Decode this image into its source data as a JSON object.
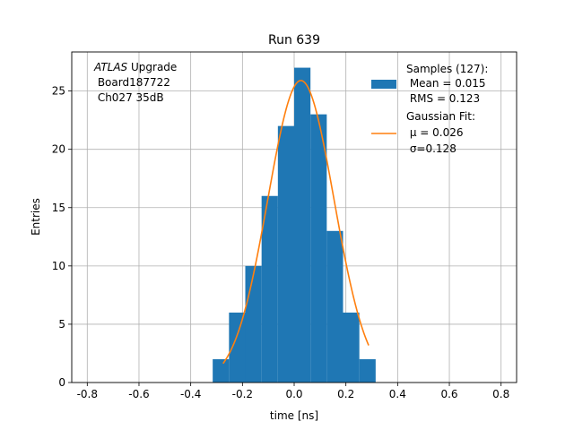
{
  "chart_data": {
    "type": "bar",
    "title": "Run 639",
    "xlabel": "time [ns]",
    "ylabel": "Entries",
    "xlim": [
      -0.86,
      0.86
    ],
    "ylim": [
      0,
      28.35
    ],
    "grid": true,
    "xticks": [
      "-0.8",
      "-0.6",
      "-0.4",
      "-0.2",
      "0.0",
      "0.2",
      "0.4",
      "0.6",
      "0.8"
    ],
    "xtick_values": [
      -0.8,
      -0.6,
      -0.4,
      -0.2,
      0.0,
      0.2,
      0.4,
      0.6,
      0.8
    ],
    "yticks": [
      "0",
      "5",
      "10",
      "15",
      "20",
      "25"
    ],
    "ytick_values": [
      0,
      5,
      10,
      15,
      20,
      25
    ],
    "histogram": {
      "bin_edges": [
        -0.315,
        -0.252,
        -0.189,
        -0.126,
        -0.063,
        0.0,
        0.063,
        0.126,
        0.189,
        0.252,
        0.315
      ],
      "counts": [
        2,
        6,
        10,
        16,
        22,
        27,
        23,
        13,
        6,
        2
      ],
      "color": "#1f77b4"
    },
    "fit": {
      "type": "gaussian",
      "mu": 0.026,
      "sigma": 0.128,
      "amplitude": 25.9,
      "x_range": [
        -0.275,
        0.288
      ],
      "color": "#ff7f0e"
    },
    "annotation": {
      "italic": "ATLAS",
      "line1_rest": " Upgrade",
      "line2": " Board187722",
      "line3": " Ch027 35dB"
    },
    "legend": {
      "placement": "top-right",
      "samples_lines": [
        "Samples (127):",
        " Mean = 0.015",
        " RMS = 0.123"
      ],
      "fit_lines": [
        "Gaussian Fit:",
        " μ = 0.026",
        " σ=0.128"
      ]
    }
  }
}
